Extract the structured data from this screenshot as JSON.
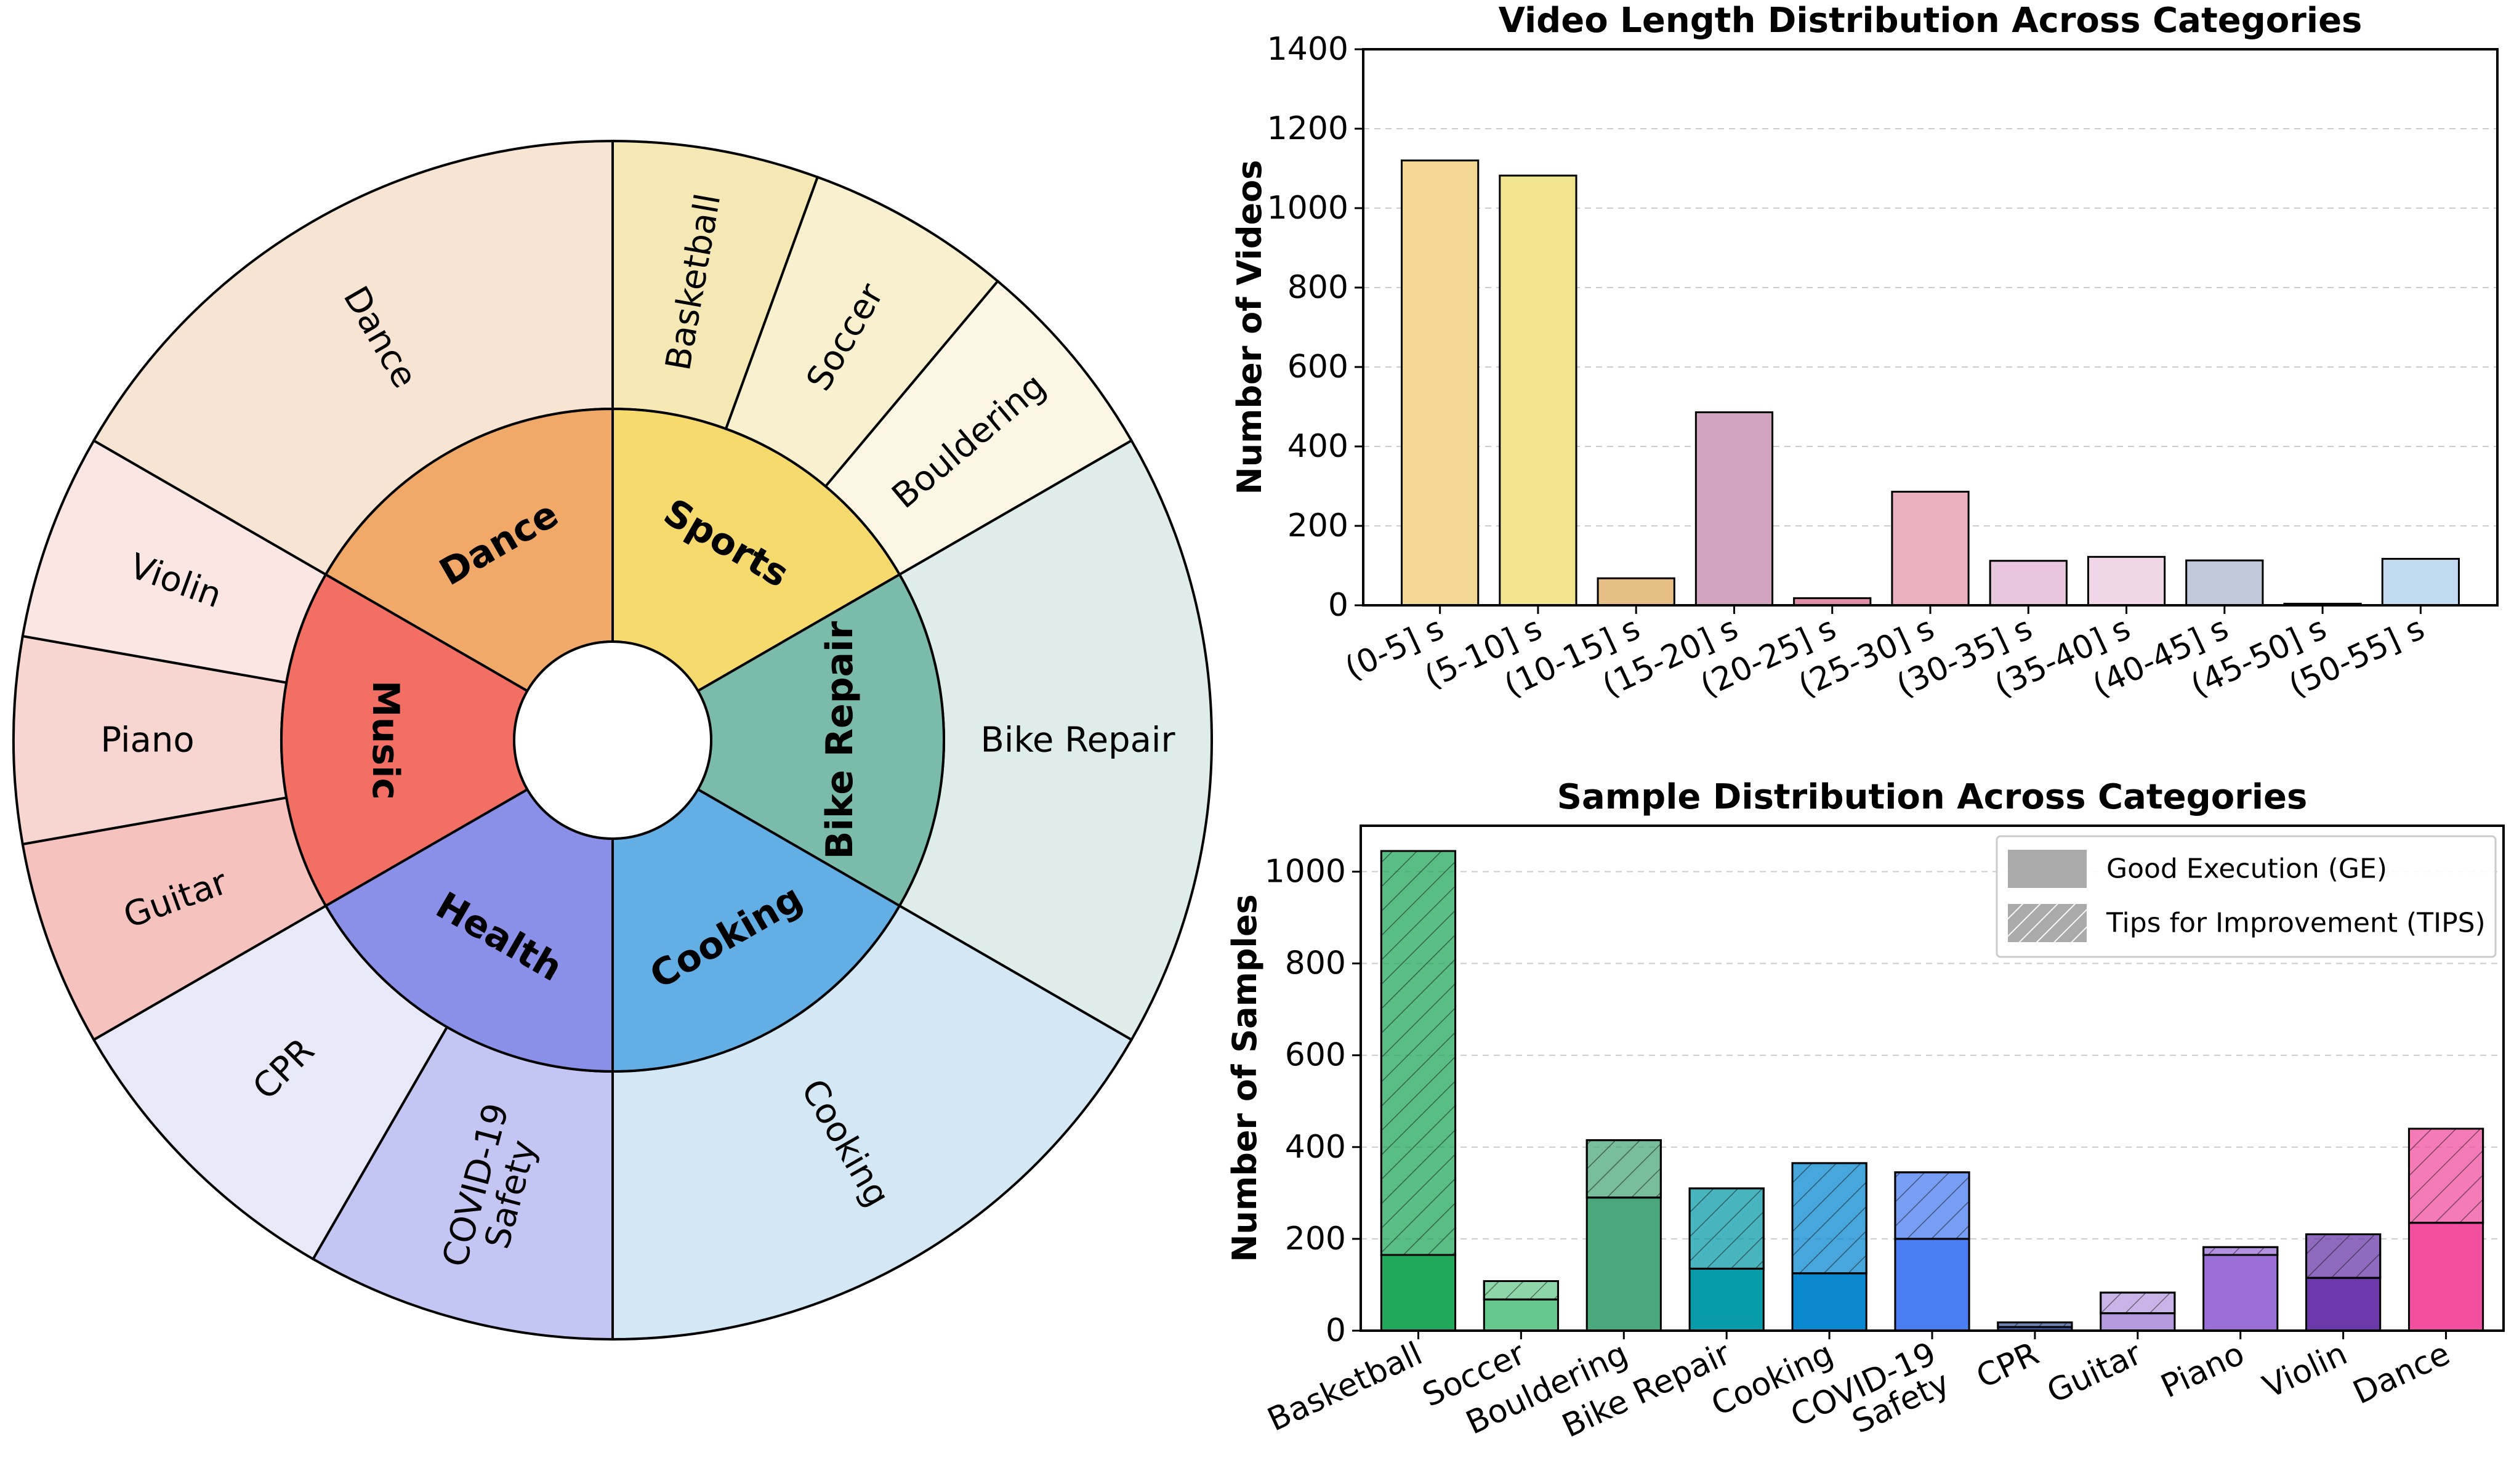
{
  "chart_data": [
    {
      "type": "sunburst",
      "inner": [
        {
          "label": "Sports",
          "color": "#F6DA6E"
        },
        {
          "label": "Bike Repair",
          "color": "#7BBBAC"
        },
        {
          "label": "Cooking",
          "color": "#64AEE6"
        },
        {
          "label": "Health",
          "color": "#8A8FE8"
        },
        {
          "label": "Music",
          "color": "#F36F64"
        },
        {
          "label": "Dance",
          "color": "#F1A96A"
        }
      ],
      "outer": [
        {
          "label": "Basketball",
          "color": "#F5E8B4"
        },
        {
          "label": "Soccer",
          "color": "#F8F0CE"
        },
        {
          "label": "Bouldering",
          "color": "#FCF6E4"
        },
        {
          "label": "Bike Repair",
          "color": "#DEEDE9"
        },
        {
          "label": "Cooking",
          "color": "#D4E7F5"
        },
        {
          "label": "COVID-19 Safety",
          "color": "#C3C5F2"
        },
        {
          "label": "CPR",
          "color": "#E8E9F8"
        },
        {
          "label": "Guitar",
          "color": "#F5C2BE"
        },
        {
          "label": "Piano",
          "color": "#F7D5D1"
        },
        {
          "label": "Violin",
          "color": "#FBE6E4"
        },
        {
          "label": "Dance",
          "color": "#F8E4D3"
        }
      ]
    },
    {
      "type": "bar",
      "title": "Video Length Distribution Across Categories",
      "ylabel": "Number of Videos",
      "xlabel": "",
      "ylim": [
        0,
        1400
      ],
      "yticks": [
        0,
        200,
        400,
        600,
        800,
        1000,
        1200,
        1400
      ],
      "grid": "y-dashed",
      "categories": [
        "(0-5] s",
        "(5-10] s",
        "(10-15] s",
        "(15-20] s",
        "(20-25] s",
        "(25-30] s",
        "(30-35] s",
        "(35-40] s",
        "(40-45] s",
        "(45-50] s",
        "(50-55] s"
      ],
      "values": [
        1120,
        1082,
        68,
        486,
        18,
        286,
        112,
        122,
        113,
        4,
        117
      ],
      "colors": [
        "#F3D894",
        "#F2E48E",
        "#E8BE87",
        "#D3A4BF",
        "#E08DA6",
        "#EAB0BE",
        "#E8C6DE",
        "#F1D6E8",
        "#BFC9D9",
        "#D1D6E8",
        "#C2DAF0"
      ]
    },
    {
      "type": "stacked-bar",
      "title": "Sample Distribution Across Categories",
      "ylabel": "Number of Samples",
      "xlabel": "",
      "ylim": [
        0,
        1100
      ],
      "yticks": [
        0,
        200,
        400,
        600,
        800,
        1000
      ],
      "grid": "y-dashed",
      "legend_position": "top-right",
      "categories": [
        "Basketball",
        "Soccer",
        "Bouldering",
        "Bike Repair",
        "Cooking",
        "COVID-19 Safety",
        "CPR",
        "Guitar",
        "Piano",
        "Violin",
        "Dance"
      ],
      "series": [
        {
          "name": "Good Execution (GE)",
          "values": [
            165,
            68,
            290,
            135,
            125,
            200,
            8,
            38,
            165,
            115,
            235
          ],
          "pattern": "solid"
        },
        {
          "name": "Tips for Improvement (TIPS)",
          "values": [
            880,
            40,
            125,
            175,
            240,
            145,
            10,
            45,
            17,
            95,
            205
          ],
          "pattern": "hatched"
        }
      ],
      "colors": [
        "#22A85A",
        "#66C88C",
        "#4BA87A",
        "#0A9BA8",
        "#0A88D0",
        "#4A7CF2",
        "#3D5A9E",
        "#B59BDE",
        "#9B6ED8",
        "#6A38A8",
        "#F24FA0"
      ]
    }
  ]
}
